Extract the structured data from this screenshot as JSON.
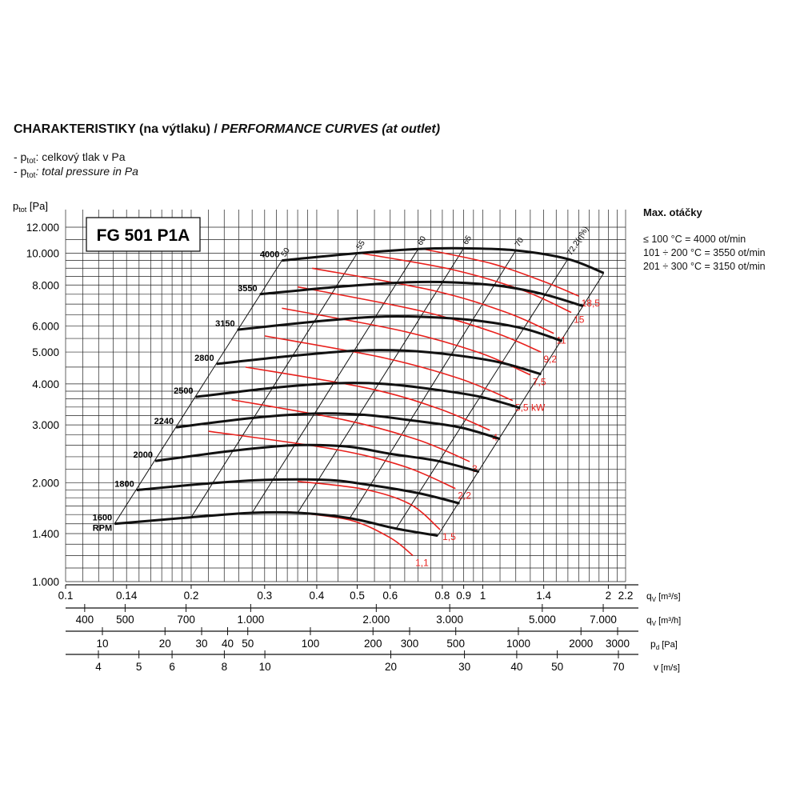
{
  "header": {
    "title_bold": "CHARAKTERISTIKY (na výtlaku) / ",
    "title_italic": "PERFORMANCE CURVES (at outlet)",
    "note1_prefix": "- p",
    "note1_sub": "tot",
    "note1_text": ": celkový tlak v Pa",
    "note2_prefix": "- p",
    "note2_sub": "tot",
    "note2_text": ": total pressure in Pa"
  },
  "side_panel": {
    "title": "Max. otáčky",
    "lines": [
      "≤ 100 °C = 4000 ot/min",
      "101 ÷ 200 °C = 3550 ot/min",
      "201 ÷ 300 °C = 3150 ot/min"
    ]
  },
  "colors": {
    "fan_curve": "#111111",
    "power_curve": "#e8201c",
    "grid": "#222222",
    "power_label": "#e8201c"
  },
  "chart_data": {
    "type": "line",
    "title": "FG 501 P1A",
    "x_scale": "log",
    "y_scale": "log",
    "xlim": [
      0.1,
      2.2
    ],
    "ylim": [
      1000,
      12000
    ],
    "ylabel_main": "p",
    "ylabel_sub": "tot",
    "ylabel_unit": " [Pa]",
    "y_ticks": [
      {
        "value": 1000,
        "label": "1.000"
      },
      {
        "value": 1400,
        "label": "1.400"
      },
      {
        "value": 2000,
        "label": "2.000"
      },
      {
        "value": 3000,
        "label": "3.000"
      },
      {
        "value": 4000,
        "label": "4.000"
      },
      {
        "value": 5000,
        "label": "5.000"
      },
      {
        "value": 6000,
        "label": "6.000"
      },
      {
        "value": 8000,
        "label": "8.000"
      },
      {
        "value": 10000,
        "label": "10.000"
      },
      {
        "value": 12000,
        "label": "12.000"
      }
    ],
    "x_axes": [
      {
        "label": "q",
        "label_sub": "V",
        "label_unit": " [m³/s]",
        "ticks": [
          {
            "value": 0.1,
            "label": "0.1"
          },
          {
            "value": 0.14,
            "label": "0.14"
          },
          {
            "value": 0.2,
            "label": "0.2"
          },
          {
            "value": 0.3,
            "label": "0.3"
          },
          {
            "value": 0.4,
            "label": "0.4"
          },
          {
            "value": 0.5,
            "label": "0.5"
          },
          {
            "value": 0.6,
            "label": "0.6"
          },
          {
            "value": 0.8,
            "label": "0.8"
          },
          {
            "value": 0.9,
            "label": "0.9"
          },
          {
            "value": 1,
            "label": "1"
          },
          {
            "value": 1.4,
            "label": "1.4"
          },
          {
            "value": 2,
            "label": "2"
          },
          {
            "value": 2.2,
            "label": "2.2"
          }
        ]
      },
      {
        "label": "q",
        "label_sub": "V",
        "label_unit": " [m³/h]",
        "ticks": [
          {
            "value": 400,
            "label": "400"
          },
          {
            "value": 500,
            "label": "500"
          },
          {
            "value": 700,
            "label": "700"
          },
          {
            "value": 1000,
            "label": "1.000"
          },
          {
            "value": 2000,
            "label": "2.000"
          },
          {
            "value": 3000,
            "label": "3.000"
          },
          {
            "value": 5000,
            "label": "5.000"
          },
          {
            "value": 7000,
            "label": "7.000"
          }
        ]
      },
      {
        "label": "p",
        "label_sub": "d",
        "label_unit": " [Pa]",
        "ticks": [
          {
            "value": 10,
            "label": "10"
          },
          {
            "value": 20,
            "label": "20"
          },
          {
            "value": 30,
            "label": "30"
          },
          {
            "value": 40,
            "label": "40"
          },
          {
            "value": 50,
            "label": "50"
          },
          {
            "value": 100,
            "label": "100"
          },
          {
            "value": 200,
            "label": "200"
          },
          {
            "value": 300,
            "label": "300"
          },
          {
            "value": 500,
            "label": "500"
          },
          {
            "value": 1000,
            "label": "1000"
          },
          {
            "value": 2000,
            "label": "2000"
          },
          {
            "value": 3000,
            "label": "3000"
          }
        ]
      },
      {
        "label": "v",
        "label_sub": "",
        "label_unit": " [m/s]",
        "ticks": [
          {
            "value": 4,
            "label": "4"
          },
          {
            "value": 5,
            "label": "5"
          },
          {
            "value": 6,
            "label": "6"
          },
          {
            "value": 8,
            "label": "8"
          },
          {
            "value": 10,
            "label": "10"
          },
          {
            "value": 20,
            "label": "20"
          },
          {
            "value": 30,
            "label": "30"
          },
          {
            "value": 40,
            "label": "40"
          },
          {
            "value": 50,
            "label": "50"
          },
          {
            "value": 70,
            "label": "70"
          }
        ]
      }
    ],
    "rpm_unit_label": "RPM",
    "fan_curves": [
      {
        "rpm": "4000",
        "points": [
          [
            0.33,
            9500
          ],
          [
            0.5,
            10000
          ],
          [
            0.7,
            10300
          ],
          [
            0.9,
            10350
          ],
          [
            1.2,
            10200
          ],
          [
            1.6,
            9600
          ],
          [
            1.95,
            8700
          ]
        ]
      },
      {
        "rpm": "3550",
        "points": [
          [
            0.292,
            7500
          ],
          [
            0.45,
            7900
          ],
          [
            0.65,
            8150
          ],
          [
            0.85,
            8150
          ],
          [
            1.1,
            7950
          ],
          [
            1.4,
            7500
          ],
          [
            1.74,
            6900
          ]
        ]
      },
      {
        "rpm": "3150",
        "points": [
          [
            0.258,
            5850
          ],
          [
            0.4,
            6200
          ],
          [
            0.55,
            6400
          ],
          [
            0.72,
            6400
          ],
          [
            0.95,
            6250
          ],
          [
            1.25,
            5900
          ],
          [
            1.55,
            5400
          ]
        ]
      },
      {
        "rpm": "2800",
        "points": [
          [
            0.23,
            4600
          ],
          [
            0.35,
            4870
          ],
          [
            0.5,
            5050
          ],
          [
            0.65,
            5050
          ],
          [
            0.85,
            4900
          ],
          [
            1.1,
            4650
          ],
          [
            1.38,
            4280
          ]
        ]
      },
      {
        "rpm": "2500",
        "points": [
          [
            0.205,
            3650
          ],
          [
            0.32,
            3900
          ],
          [
            0.45,
            4020
          ],
          [
            0.58,
            4000
          ],
          [
            0.75,
            3860
          ],
          [
            0.98,
            3660
          ],
          [
            1.23,
            3380
          ]
        ]
      },
      {
        "rpm": "2240",
        "points": [
          [
            0.184,
            2950
          ],
          [
            0.28,
            3150
          ],
          [
            0.4,
            3250
          ],
          [
            0.52,
            3220
          ],
          [
            0.67,
            3100
          ],
          [
            0.88,
            2950
          ],
          [
            1.1,
            2720
          ]
        ]
      },
      {
        "rpm": "2000",
        "points": [
          [
            0.164,
            2330
          ],
          [
            0.25,
            2500
          ],
          [
            0.35,
            2600
          ],
          [
            0.47,
            2580
          ],
          [
            0.6,
            2450
          ],
          [
            0.78,
            2330
          ],
          [
            0.98,
            2160
          ]
        ]
      },
      {
        "rpm": "1800",
        "points": [
          [
            0.148,
            1900
          ],
          [
            0.22,
            1990
          ],
          [
            0.3,
            2040
          ],
          [
            0.42,
            2040
          ],
          [
            0.52,
            1980
          ],
          [
            0.7,
            1860
          ],
          [
            0.88,
            1730
          ]
        ]
      },
      {
        "rpm": "1600",
        "points": [
          [
            0.131,
            1500
          ],
          [
            0.2,
            1570
          ],
          [
            0.28,
            1620
          ],
          [
            0.36,
            1620
          ],
          [
            0.48,
            1560
          ],
          [
            0.62,
            1450
          ],
          [
            0.78,
            1380
          ]
        ]
      }
    ],
    "efficiency_lines": [
      {
        "label": "50",
        "points": [
          [
            0.131,
            1500
          ],
          [
            0.33,
            9500
          ]
        ]
      },
      {
        "label": "55",
        "points": [
          [
            0.2,
            1570
          ],
          [
            0.5,
            10000
          ]
        ]
      },
      {
        "label": "60",
        "points": [
          [
            0.28,
            1620
          ],
          [
            0.7,
            10300
          ]
        ]
      },
      {
        "label": "65",
        "points": [
          [
            0.36,
            1620
          ],
          [
            0.9,
            10350
          ]
        ]
      },
      {
        "label": "70",
        "points": [
          [
            0.48,
            1560
          ],
          [
            1.2,
            10200
          ]
        ]
      },
      {
        "label": "72,2(η%)",
        "points": [
          [
            0.62,
            1450
          ],
          [
            1.6,
            9600
          ]
        ]
      },
      {
        "label": "",
        "points": [
          [
            0.78,
            1380
          ],
          [
            1.95,
            8700
          ]
        ]
      }
    ],
    "power_curves": [
      {
        "label": "1,1",
        "points": [
          [
            0.345,
            1630
          ],
          [
            0.48,
            1540
          ],
          [
            0.6,
            1360
          ],
          [
            0.68,
            1200
          ]
        ]
      },
      {
        "label": "1,5",
        "points": [
          [
            0.36,
            2020
          ],
          [
            0.52,
            1910
          ],
          [
            0.67,
            1720
          ],
          [
            0.79,
            1440
          ]
        ]
      },
      {
        "label": "2,2",
        "points": [
          [
            0.22,
            2870
          ],
          [
            0.44,
            2530
          ],
          [
            0.65,
            2240
          ],
          [
            0.86,
            1920
          ]
        ]
      },
      {
        "label": "3",
        "points": [
          [
            0.25,
            3580
          ],
          [
            0.47,
            3100
          ],
          [
            0.7,
            2700
          ],
          [
            0.93,
            2320
          ]
        ]
      },
      {
        "label": "4",
        "points": [
          [
            0.27,
            4500
          ],
          [
            0.53,
            3880
          ],
          [
            0.78,
            3370
          ],
          [
            1.04,
            2890
          ]
        ]
      },
      {
        "label": "5,5 kW",
        "points": [
          [
            0.3,
            5600
          ],
          [
            0.58,
            4800
          ],
          [
            0.88,
            4150
          ],
          [
            1.18,
            3560
          ]
        ]
      },
      {
        "label": "7,5",
        "points": [
          [
            0.33,
            6800
          ],
          [
            0.64,
            5800
          ],
          [
            0.98,
            4980
          ],
          [
            1.3,
            4260
          ]
        ]
      },
      {
        "label": "9,2",
        "points": [
          [
            0.36,
            7900
          ],
          [
            0.7,
            6700
          ],
          [
            1.06,
            5750
          ],
          [
            1.38,
            5000
          ]
        ]
      },
      {
        "label": "11",
        "points": [
          [
            0.39,
            9000
          ],
          [
            0.76,
            7700
          ],
          [
            1.14,
            6600
          ],
          [
            1.48,
            5700
          ]
        ]
      },
      {
        "label": "15",
        "points": [
          [
            0.51,
            10000
          ],
          [
            0.85,
            8900
          ],
          [
            1.25,
            7700
          ],
          [
            1.63,
            6600
          ]
        ]
      },
      {
        "label": "18,5",
        "points": [
          [
            0.72,
            10300
          ],
          [
            1.05,
            9300
          ],
          [
            1.4,
            8200
          ],
          [
            1.7,
            7400
          ]
        ]
      }
    ],
    "grid": "on",
    "legend": "none"
  }
}
